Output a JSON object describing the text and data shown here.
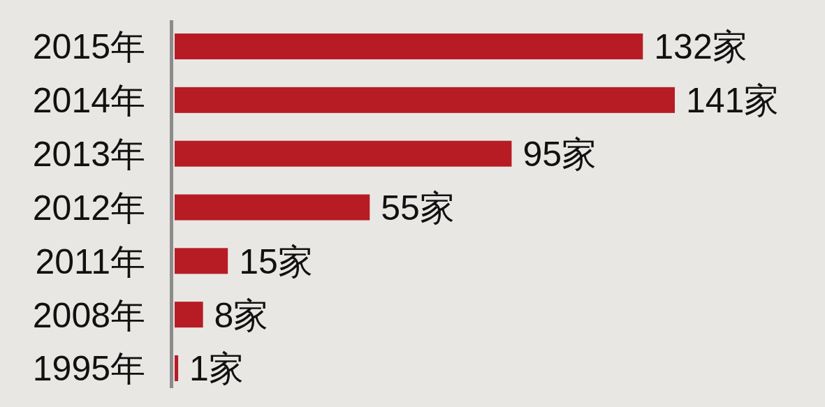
{
  "chart_data": {
    "type": "bar",
    "orientation": "horizontal",
    "color": "#b71c25",
    "categories": [
      "2015年",
      "2014年",
      "2013年",
      "2012年",
      "2011年",
      "2008年",
      "1995年"
    ],
    "values": [
      132,
      141,
      95,
      55,
      15,
      8,
      1
    ],
    "value_labels": [
      "132家",
      "141家",
      "95家",
      "55家",
      "15家",
      "8家",
      "1家"
    ]
  }
}
